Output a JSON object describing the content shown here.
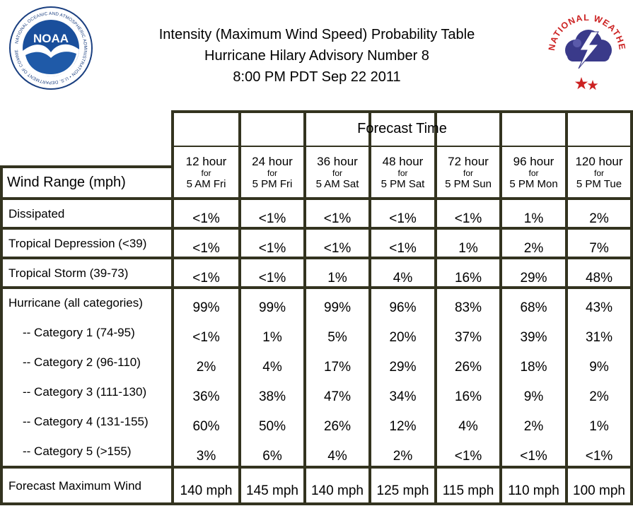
{
  "header": {
    "title_lines": [
      "Intensity (Maximum Wind Speed) Probability Table",
      "Hurricane Hilary Advisory Number 8",
      "8:00 PM PDT Sep 22 2011"
    ],
    "noaa_logo": {
      "center_text": "NOAA",
      "ring_text": "NATIONAL OCEANIC AND ATMOSPHERIC ADMINISTRATION • U.S. DEPARTMENT OF COMMERCE",
      "colors": {
        "sky": "#1a4f9c",
        "ocean": "#1f5aa8",
        "bird": "#ffffff"
      }
    },
    "nws_logo": {
      "ring_text": "NATIONAL WEATHER SERVICE",
      "colors": {
        "ring": "#cc2222",
        "cloud": "#3a3a8a",
        "bolt": "#ffffff",
        "stars": "#cc2222"
      }
    }
  },
  "table": {
    "group_header": "Forecast Time",
    "row_header": "Wind Range (mph)",
    "columns": [
      {
        "hours": "12 hour",
        "for": "for",
        "when": "5 AM Fri"
      },
      {
        "hours": "24 hour",
        "for": "for",
        "when": "5 PM Fri"
      },
      {
        "hours": "36 hour",
        "for": "for",
        "when": "5 AM Sat"
      },
      {
        "hours": "48 hour",
        "for": "for",
        "when": "5 PM Sat"
      },
      {
        "hours": "72 hour",
        "for": "for",
        "when": "5 PM Sun"
      },
      {
        "hours": "96 hour",
        "for": "for",
        "when": "5 PM Mon"
      },
      {
        "hours": "120 hour",
        "for": "for",
        "when": "5 PM Tue"
      }
    ],
    "rows": [
      {
        "label": "Dissipated",
        "values": [
          "<1%",
          "<1%",
          "<1%",
          "<1%",
          "<1%",
          "1%",
          "2%"
        ]
      },
      {
        "label": "Tropical Depression (<39)",
        "values": [
          "<1%",
          "<1%",
          "<1%",
          "<1%",
          "1%",
          "2%",
          "7%"
        ]
      },
      {
        "label": "Tropical Storm (39-73)",
        "values": [
          "<1%",
          "<1%",
          "1%",
          "4%",
          "16%",
          "29%",
          "48%"
        ]
      },
      {
        "label": "Hurricane (all categories)",
        "values": [
          "99%",
          "99%",
          "99%",
          "96%",
          "83%",
          "68%",
          "43%"
        ]
      },
      {
        "label": "-- Category 1 (74-95)",
        "values": [
          "<1%",
          "1%",
          "5%",
          "20%",
          "37%",
          "39%",
          "31%"
        ]
      },
      {
        "label": "-- Category 2 (96-110)",
        "values": [
          "2%",
          "4%",
          "17%",
          "29%",
          "26%",
          "18%",
          "9%"
        ]
      },
      {
        "label": "-- Category 3 (111-130)",
        "values": [
          "36%",
          "38%",
          "47%",
          "34%",
          "16%",
          "9%",
          "2%"
        ]
      },
      {
        "label": "-- Category 4 (131-155)",
        "values": [
          "60%",
          "50%",
          "26%",
          "12%",
          "4%",
          "2%",
          "1%"
        ]
      },
      {
        "label": "-- Category 5 (>155)",
        "values": [
          "3%",
          "6%",
          "4%",
          "2%",
          "<1%",
          "<1%",
          "<1%"
        ]
      },
      {
        "label": "Forecast Maximum Wind",
        "values": [
          "140 mph",
          "145 mph",
          "140 mph",
          "125 mph",
          "115 mph",
          "110 mph",
          "100 mph"
        ]
      }
    ],
    "colors": {
      "border": "#33331f",
      "background": "#ffffff",
      "text": "#000000"
    }
  }
}
